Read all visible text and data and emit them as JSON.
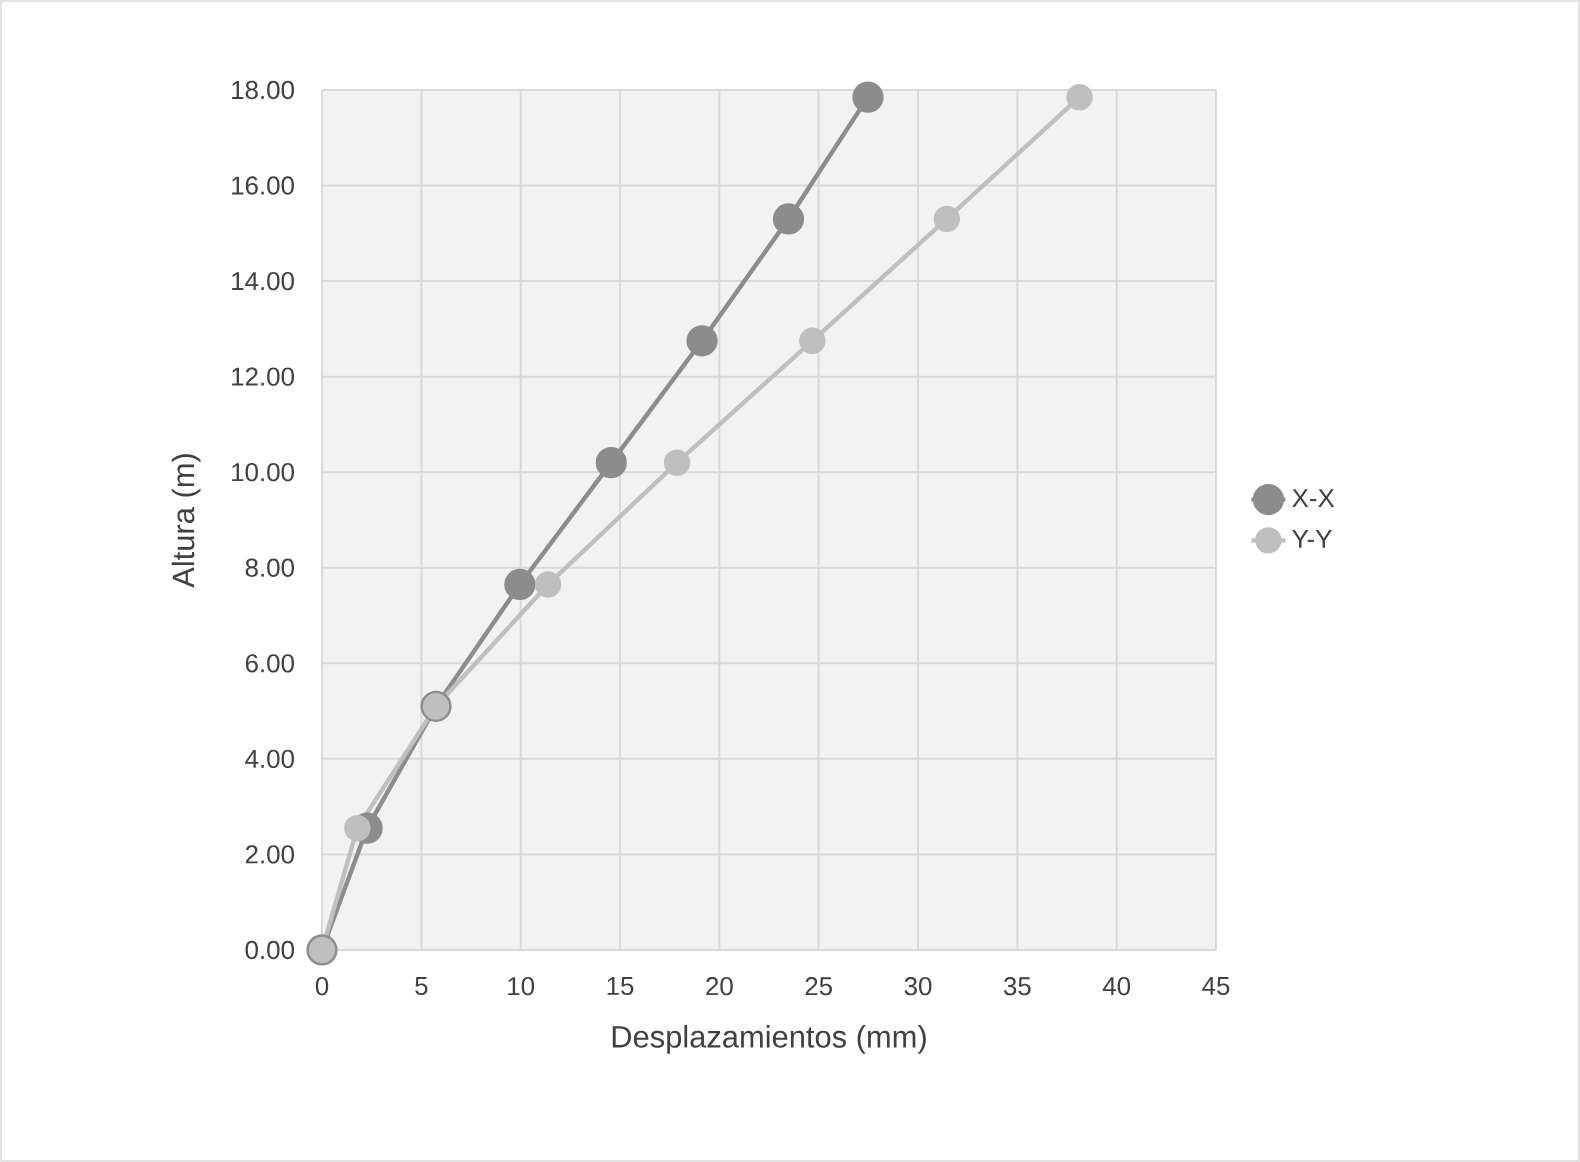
{
  "chart_data": {
    "type": "line",
    "xlabel": "Desplazamientos (mm)",
    "ylabel": "Altura (m)",
    "series": [
      {
        "name": "X-X",
        "color": "#8c8c8c",
        "x": [
          0,
          2.27,
          5.74,
          9.96,
          14.56,
          19.13,
          23.48,
          27.48
        ],
        "values": [
          0,
          2.55,
          5.1,
          7.65,
          10.2,
          12.75,
          15.3,
          17.85
        ]
      },
      {
        "name": "Y-Y",
        "color": "#bfbfbf",
        "x": [
          0,
          1.78,
          5.74,
          11.38,
          17.87,
          24.68,
          31.45,
          38.13
        ],
        "values": [
          0,
          2.55,
          5.1,
          7.65,
          10.2,
          12.75,
          15.3,
          17.85
        ]
      }
    ],
    "xlim": [
      0,
      45
    ],
    "xticks": [
      0,
      5,
      10,
      15,
      20,
      25,
      30,
      35,
      40,
      45
    ],
    "ylim": [
      0,
      18
    ],
    "yticks": [
      {
        "value": 0,
        "label": "0.00"
      },
      {
        "value": 2,
        "label": "2.00"
      },
      {
        "value": 4,
        "label": "4.00"
      },
      {
        "value": 6,
        "label": "6.00"
      },
      {
        "value": 8,
        "label": "8.00"
      },
      {
        "value": 10,
        "label": "10.00"
      },
      {
        "value": 12,
        "label": "12.00"
      },
      {
        "value": 14,
        "label": "14.00"
      },
      {
        "value": 16,
        "label": "16.00"
      },
      {
        "value": 18,
        "label": "18.00"
      }
    ],
    "grid": true,
    "legend": "right",
    "marker": "circle",
    "line_style": "solid"
  }
}
